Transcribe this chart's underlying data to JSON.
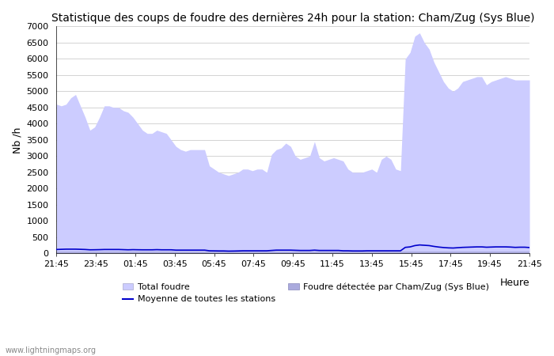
{
  "title": "Statistique des coups de foudre des dernières 24h pour la station: Cham/Zug (Sys Blue)",
  "xlabel": "Heure",
  "ylabel": "Nb /h",
  "ylim": [
    0,
    7000
  ],
  "yticks": [
    0,
    500,
    1000,
    1500,
    2000,
    2500,
    3000,
    3500,
    4000,
    4500,
    5000,
    5500,
    6000,
    6500,
    7000
  ],
  "xtick_labels": [
    "21:45",
    "23:45",
    "01:45",
    "03:45",
    "05:45",
    "07:45",
    "09:45",
    "11:45",
    "13:45",
    "15:45",
    "17:45",
    "19:45",
    "21:45"
  ],
  "bg_color": "#ffffff",
  "plot_bg_color": "#ffffff",
  "grid_color": "#cccccc",
  "fill_total_color": "#ccccff",
  "fill_station_color": "#aaaadd",
  "line_mean_color": "#0000cc",
  "watermark": "www.lightningmaps.org",
  "total_foudre": [
    4600,
    4550,
    4600,
    4800,
    4900,
    4550,
    4200,
    3800,
    3900,
    4200,
    4550,
    4550,
    4500,
    4500,
    4400,
    4350,
    4200,
    4000,
    3800,
    3700,
    3700,
    3800,
    3750,
    3700,
    3500,
    3300,
    3200,
    3150,
    3200,
    3200,
    3200,
    3200,
    2700,
    2600,
    2500,
    2450,
    2400,
    2450,
    2500,
    2600,
    2600,
    2550,
    2600,
    2600,
    2500,
    3050,
    3200,
    3250,
    3400,
    3300,
    3000,
    2900,
    2950,
    3000,
    3450,
    2950,
    2850,
    2900,
    2950,
    2900,
    2850,
    2600,
    2500,
    2500,
    2500,
    2550,
    2600,
    2500,
    2900,
    3000,
    2900,
    2600,
    2550,
    6000,
    6200,
    6700,
    6800,
    6500,
    6300,
    5900,
    5600,
    5300,
    5100,
    5000,
    5100,
    5300,
    5350,
    5400,
    5450,
    5450,
    5200,
    5300,
    5350,
    5400,
    5450,
    5400,
    5350,
    5350,
    5350,
    5350
  ],
  "station_foudre": [
    50,
    50,
    50,
    50,
    50,
    50,
    50,
    50,
    50,
    50,
    50,
    50,
    50,
    50,
    50,
    50,
    50,
    50,
    50,
    50,
    50,
    50,
    50,
    50,
    50,
    50,
    50,
    50,
    50,
    50,
    50,
    50,
    50,
    50,
    50,
    50,
    50,
    50,
    50,
    50,
    50,
    50,
    50,
    50,
    50,
    50,
    50,
    50,
    50,
    50,
    50,
    50,
    50,
    50,
    50,
    50,
    50,
    50,
    50,
    50,
    50,
    50,
    50,
    50,
    50,
    50,
    50,
    50,
    50,
    50,
    50,
    50,
    50,
    50,
    50,
    50,
    50,
    50,
    50,
    50,
    50,
    50,
    50,
    50,
    50,
    50,
    50,
    50,
    50,
    50,
    50,
    50,
    50,
    50,
    50,
    50,
    50,
    50,
    50,
    50
  ],
  "mean_line": [
    120,
    125,
    130,
    130,
    130,
    125,
    120,
    110,
    112,
    115,
    120,
    120,
    120,
    120,
    115,
    110,
    115,
    112,
    110,
    110,
    110,
    115,
    110,
    110,
    110,
    100,
    100,
    100,
    100,
    100,
    100,
    100,
    80,
    78,
    75,
    75,
    70,
    72,
    75,
    80,
    80,
    80,
    80,
    80,
    80,
    90,
    100,
    100,
    100,
    100,
    95,
    90,
    90,
    90,
    100,
    90,
    90,
    90,
    90,
    90,
    80,
    80,
    75,
    75,
    75,
    80,
    80,
    80,
    80,
    80,
    80,
    80,
    80,
    185,
    200,
    240,
    260,
    250,
    240,
    215,
    195,
    180,
    170,
    165,
    175,
    185,
    190,
    195,
    200,
    200,
    190,
    195,
    200,
    200,
    200,
    195,
    185,
    190,
    190,
    180
  ]
}
